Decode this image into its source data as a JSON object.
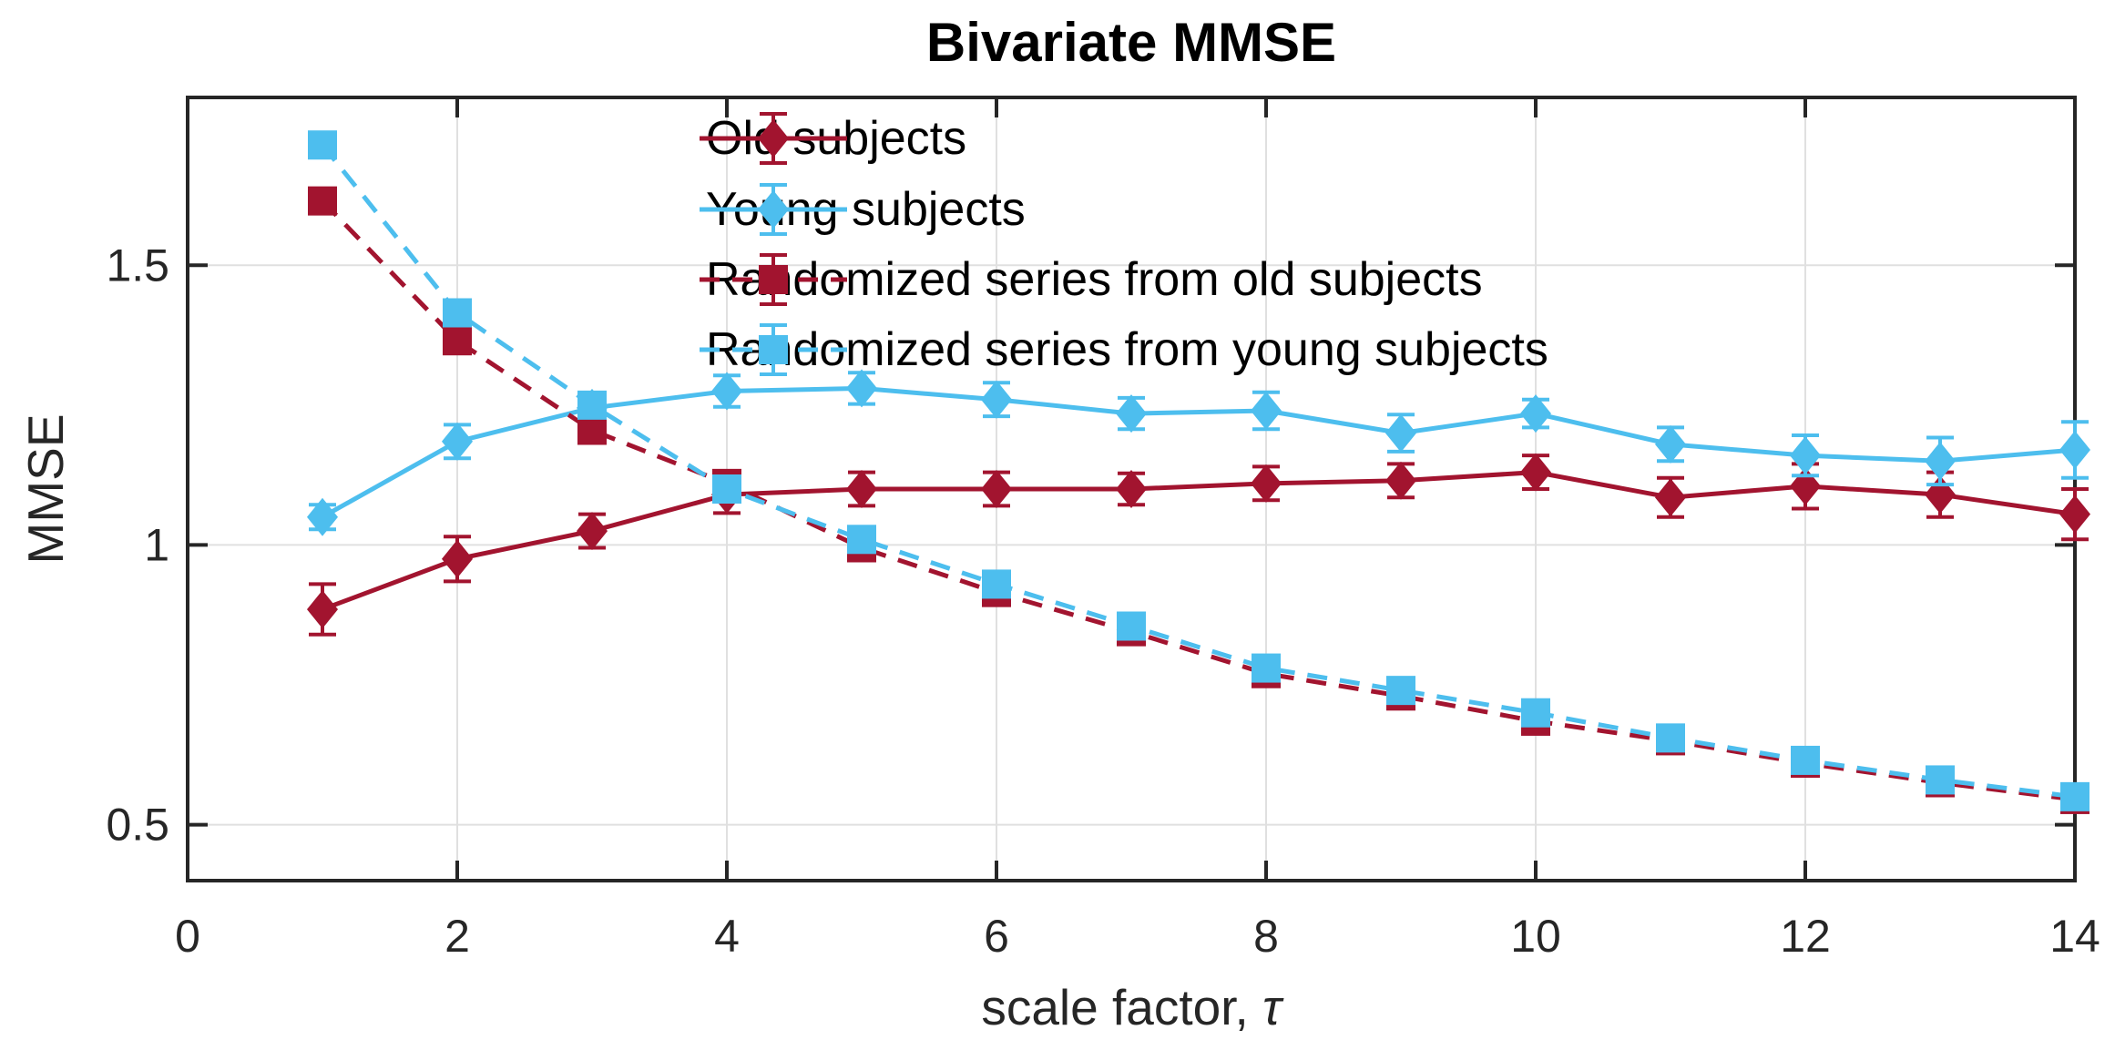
{
  "chart_data": {
    "type": "line",
    "title": "Bivariate MMSE",
    "xlabel": "scale factor, τ",
    "xlabel_parts": {
      "prefix": "scale factor, ",
      "tau": "τ"
    },
    "ylabel": "MMSE",
    "xlim": [
      0,
      14
    ],
    "ylim": [
      0.4,
      1.8
    ],
    "x_ticks": [
      0,
      2,
      4,
      6,
      8,
      10,
      12,
      14
    ],
    "x_tick_labels": [
      "0",
      "2",
      "4",
      "6",
      "8",
      "10",
      "12",
      "14"
    ],
    "y_ticks": [
      0.5,
      1,
      1.5
    ],
    "y_tick_labels": [
      "0.5",
      "1",
      "1.5"
    ],
    "grid": true,
    "legend_position": "top-center-inside, no box, transparent",
    "colors": {
      "old": "#A2142F",
      "young": "#4DBEEE",
      "axis": "#262626",
      "grid": "#E0E0E0",
      "title": "#000000"
    },
    "x": [
      1,
      2,
      3,
      4,
      5,
      6,
      7,
      8,
      9,
      10,
      11,
      12,
      13,
      14
    ],
    "series": [
      {
        "name": "Old subjects",
        "color": "#A2142F",
        "line": "solid",
        "marker": "diamond",
        "values": [
          0.885,
          0.975,
          1.025,
          1.09,
          1.1,
          1.1,
          1.1,
          1.11,
          1.115,
          1.13,
          1.085,
          1.105,
          1.09,
          1.055
        ],
        "errors": [
          0.045,
          0.04,
          0.03,
          0.033,
          0.03,
          0.03,
          0.028,
          0.03,
          0.03,
          0.03,
          0.035,
          0.04,
          0.04,
          0.045
        ]
      },
      {
        "name": "Young subjects",
        "color": "#4DBEEE",
        "line": "solid",
        "marker": "diamond",
        "values": [
          1.05,
          1.185,
          1.245,
          1.275,
          1.28,
          1.26,
          1.235,
          1.24,
          1.2,
          1.235,
          1.18,
          1.16,
          1.15,
          1.17
        ],
        "errors": [
          0.022,
          0.03,
          0.025,
          0.028,
          0.028,
          0.03,
          0.028,
          0.033,
          0.033,
          0.025,
          0.03,
          0.036,
          0.042,
          0.05
        ]
      },
      {
        "name": "Randomized series from old subjects",
        "color": "#A2142F",
        "line": "dashed",
        "marker": "square",
        "values": [
          1.615,
          1.365,
          1.205,
          1.11,
          0.995,
          0.915,
          0.845,
          0.77,
          0.73,
          0.685,
          0.65,
          0.61,
          0.575,
          0.545
        ],
        "errors": [
          0.015,
          0.015,
          0.015,
          0.015,
          0.015,
          0.015,
          0.015,
          0.015,
          0.015,
          0.015,
          0.015,
          0.015,
          0.015,
          0.015
        ]
      },
      {
        "name": "Randomized series from young subjects",
        "color": "#4DBEEE",
        "line": "dashed",
        "marker": "square",
        "values": [
          1.715,
          1.415,
          1.25,
          1.1,
          1.01,
          0.93,
          0.855,
          0.78,
          0.74,
          0.7,
          0.655,
          0.615,
          0.58,
          0.55
        ],
        "errors": [
          0.015,
          0.015,
          0.015,
          0.015,
          0.015,
          0.015,
          0.015,
          0.015,
          0.015,
          0.015,
          0.015,
          0.015,
          0.015,
          0.015
        ]
      }
    ]
  }
}
